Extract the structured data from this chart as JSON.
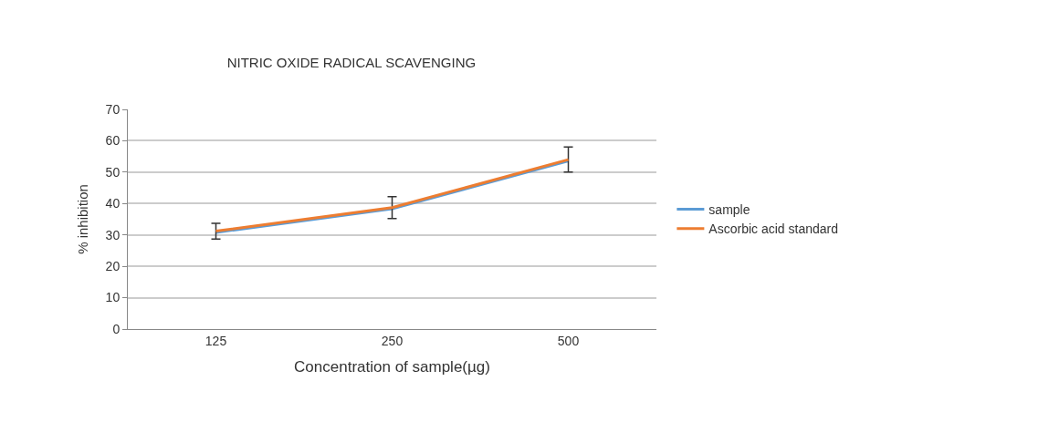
{
  "chart_data": {
    "type": "line",
    "title": "NITRIC OXIDE RADICAL SCAVENGING",
    "xlabel": "Concentration of sample(µg)",
    "ylabel": "% inhibition",
    "categories": [
      "125",
      "250",
      "500"
    ],
    "series": [
      {
        "name": "sample",
        "color": "#5b9bd5",
        "values": [
          30.8,
          38.3,
          53.6
        ]
      },
      {
        "name": "Ascorbic acid standard",
        "color": "#ed7d31",
        "values": [
          31.2,
          38.7,
          54
        ],
        "errors": [
          2.5,
          3.5,
          4
        ]
      }
    ],
    "ylim": [
      0,
      70
    ],
    "yticks": [
      0,
      10,
      20,
      30,
      40,
      50,
      60,
      70
    ],
    "grid": "y",
    "legend": "right",
    "marker": "none",
    "line_style": "solid"
  }
}
